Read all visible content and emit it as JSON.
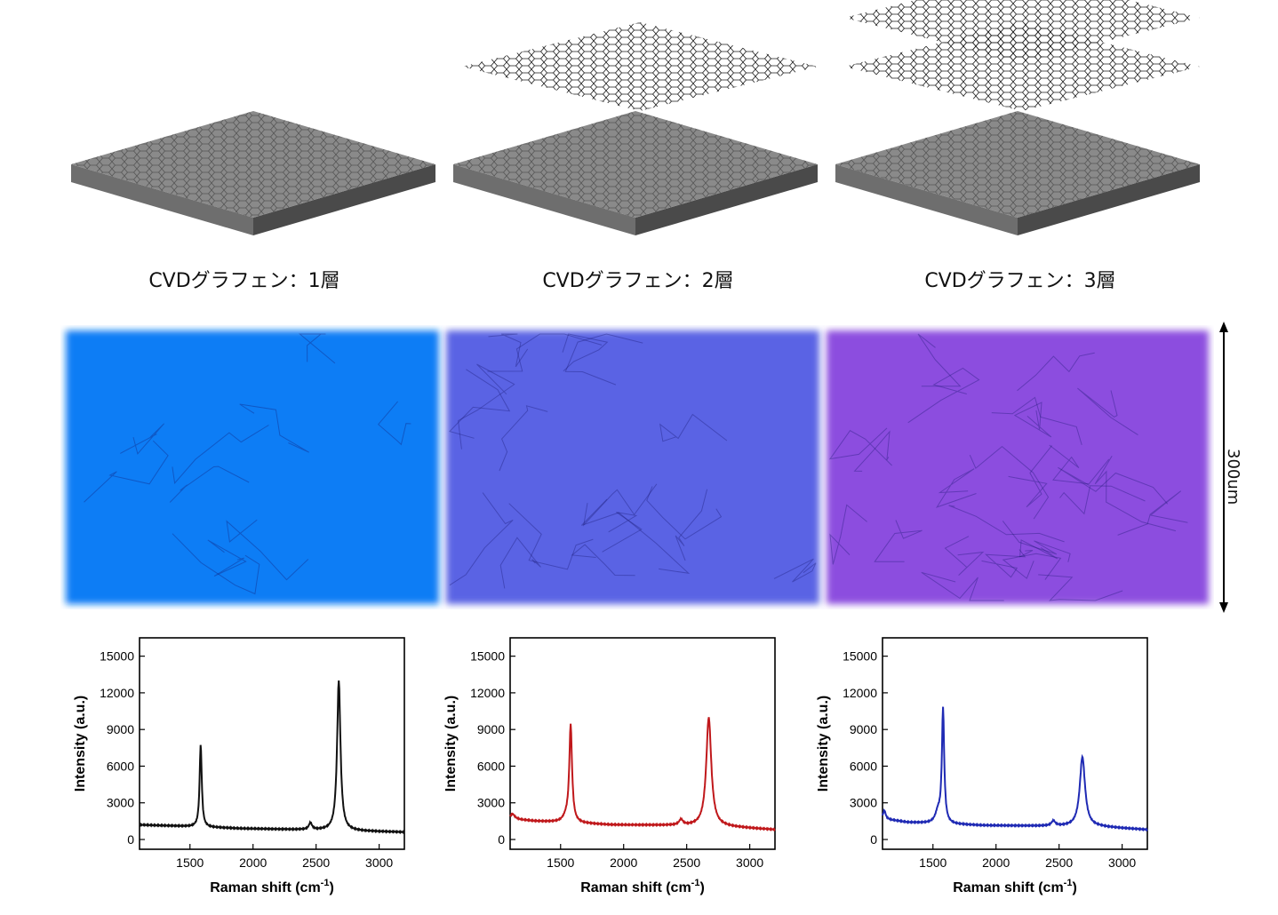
{
  "layers": [
    {
      "label": "CVDグラフェン：1層",
      "sheets": 1
    },
    {
      "label": "CVDグラフェン：2層",
      "sheets": 2
    },
    {
      "label": "CVDグラフェン：3層",
      "sheets": 3
    }
  ],
  "micrographs": {
    "colors": [
      "#0a7df5",
      "#5a63e4",
      "#8c4ddf"
    ],
    "scale_label": "300um"
  },
  "chart_data": [
    {
      "type": "line",
      "color": "#111111",
      "xlabel": "Raman shift (cm-1)",
      "ylabel": "Intensity (a.u.)",
      "xlim": [
        1100,
        3200
      ],
      "ylim": [
        -800,
        16500
      ],
      "xticks": [
        1500,
        2000,
        2500,
        3000
      ],
      "yticks": [
        0,
        3000,
        6000,
        9000,
        12000,
        15000
      ],
      "baseline": [
        [
          1100,
          1200
        ],
        [
          1400,
          1100
        ],
        [
          1900,
          900
        ],
        [
          2400,
          800
        ],
        [
          2800,
          700
        ],
        [
          3200,
          600
        ]
      ],
      "peaks": [
        {
          "center": 1585,
          "height": 6800,
          "width": 10
        },
        {
          "center": 2455,
          "height": 550,
          "width": 15
        },
        {
          "center": 2680,
          "height": 12300,
          "width": 16
        }
      ]
    },
    {
      "type": "line",
      "color": "#c0181b",
      "xlabel": "Raman shift (cm-1)",
      "ylabel": "Intensity (a.u.)",
      "xlim": [
        1100,
        3200
      ],
      "ylim": [
        -800,
        16500
      ],
      "xticks": [
        1500,
        2000,
        2500,
        3000
      ],
      "yticks": [
        0,
        3000,
        6000,
        9000,
        12000,
        15000
      ],
      "baseline": [
        [
          1100,
          1700
        ],
        [
          1300,
          1500
        ],
        [
          1500,
          1400
        ],
        [
          1900,
          1200
        ],
        [
          2400,
          1150
        ],
        [
          2800,
          1050
        ],
        [
          3200,
          800
        ]
      ],
      "peaks": [
        {
          "center": 1120,
          "height": 400,
          "width": 20
        },
        {
          "center": 1580,
          "height": 7900,
          "width": 13
        },
        {
          "center": 1545,
          "height": 400,
          "width": 30
        },
        {
          "center": 2455,
          "height": 450,
          "width": 18
        },
        {
          "center": 2675,
          "height": 8900,
          "width": 24
        }
      ]
    },
    {
      "type": "line",
      "color": "#1f2ab4",
      "xlabel": "Raman shift (cm-1)",
      "ylabel": "Intensity (a.u.)",
      "xlim": [
        1100,
        3200
      ],
      "ylim": [
        -800,
        16500
      ],
      "xticks": [
        1500,
        2000,
        2500,
        3000
      ],
      "yticks": [
        0,
        3000,
        6000,
        9000,
        12000,
        15000
      ],
      "baseline": [
        [
          1100,
          1700
        ],
        [
          1300,
          1400
        ],
        [
          1500,
          1300
        ],
        [
          1900,
          1150
        ],
        [
          2400,
          1100
        ],
        [
          2800,
          1050
        ],
        [
          3200,
          800
        ]
      ],
      "peaks": [
        {
          "center": 1115,
          "height": 700,
          "width": 12
        },
        {
          "center": 1580,
          "height": 9300,
          "width": 11
        },
        {
          "center": 1540,
          "height": 900,
          "width": 25
        },
        {
          "center": 2455,
          "height": 400,
          "width": 18
        },
        {
          "center": 2685,
          "height": 5700,
          "width": 25
        }
      ]
    }
  ]
}
